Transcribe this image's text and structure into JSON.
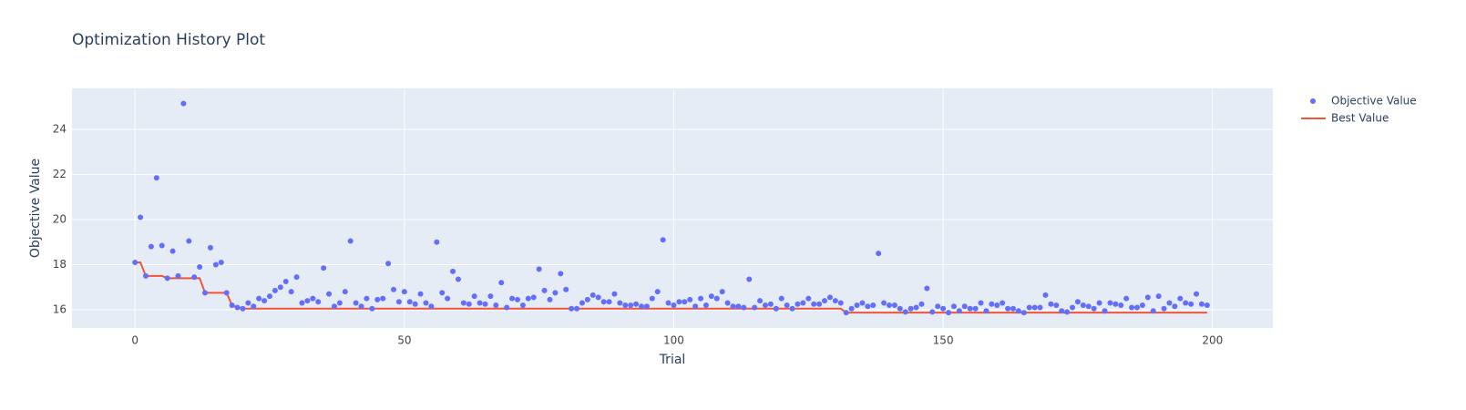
{
  "chart_data": {
    "type": "scatter",
    "title": "Optimization History Plot",
    "xlabel": "Trial",
    "ylabel": "Objective Value",
    "xlim": [
      -11.7,
      211.2
    ],
    "ylim": [
      15.19,
      25.82
    ],
    "xticks": [
      0,
      50,
      100,
      150,
      200
    ],
    "yticks": [
      16,
      18,
      20,
      22,
      24
    ],
    "grid": true,
    "legend": "outside-right",
    "x": [
      0,
      1,
      2,
      3,
      4,
      5,
      6,
      7,
      8,
      9,
      10,
      11,
      12,
      13,
      14,
      15,
      16,
      17,
      18,
      19,
      20,
      21,
      22,
      23,
      24,
      25,
      26,
      27,
      28,
      29,
      30,
      31,
      32,
      33,
      34,
      35,
      36,
      37,
      38,
      39,
      40,
      41,
      42,
      43,
      44,
      45,
      46,
      47,
      48,
      49,
      50,
      51,
      52,
      53,
      54,
      55,
      56,
      57,
      58,
      59,
      60,
      61,
      62,
      63,
      64,
      65,
      66,
      67,
      68,
      69,
      70,
      71,
      72,
      73,
      74,
      75,
      76,
      77,
      78,
      79,
      80,
      81,
      82,
      83,
      84,
      85,
      86,
      87,
      88,
      89,
      90,
      91,
      92,
      93,
      94,
      95,
      96,
      97,
      98,
      99,
      100,
      101,
      102,
      103,
      104,
      105,
      106,
      107,
      108,
      109,
      110,
      111,
      112,
      113,
      114,
      115,
      116,
      117,
      118,
      119,
      120,
      121,
      122,
      123,
      124,
      125,
      126,
      127,
      128,
      129,
      130,
      131,
      132,
      133,
      134,
      135,
      136,
      137,
      138,
      139,
      140,
      141,
      142,
      143,
      144,
      145,
      146,
      147,
      148,
      149,
      150,
      151,
      152,
      153,
      154,
      155,
      156,
      157,
      158,
      159,
      160,
      161,
      162,
      163,
      164,
      165,
      166,
      167,
      168,
      169,
      170,
      171,
      172,
      173,
      174,
      175,
      176,
      177,
      178,
      179,
      180,
      181,
      182,
      183,
      184,
      185,
      186,
      187,
      188,
      189,
      190,
      191,
      192,
      193,
      194,
      195,
      196,
      197,
      198,
      199
    ],
    "series": [
      {
        "name": "Objective Value",
        "color": "#636efa",
        "mode": "markers",
        "values": [
          18.1,
          20.1,
          17.5,
          18.8,
          21.85,
          18.85,
          17.4,
          18.6,
          17.5,
          25.15,
          19.05,
          17.45,
          17.9,
          16.75,
          18.75,
          18.0,
          18.1,
          16.75,
          16.2,
          16.1,
          16.05,
          16.3,
          16.15,
          16.5,
          16.4,
          16.6,
          16.85,
          17.0,
          17.25,
          16.8,
          17.45,
          16.3,
          16.4,
          16.5,
          16.35,
          17.85,
          16.7,
          16.15,
          16.3,
          16.8,
          19.05,
          16.3,
          16.15,
          16.5,
          16.05,
          16.45,
          16.5,
          18.05,
          16.9,
          16.35,
          16.8,
          16.35,
          16.25,
          16.7,
          16.3,
          16.15,
          19.0,
          16.75,
          16.5,
          17.7,
          17.35,
          16.3,
          16.25,
          16.6,
          16.3,
          16.25,
          16.6,
          16.2,
          17.2,
          16.1,
          16.5,
          16.45,
          16.2,
          16.5,
          16.55,
          17.8,
          16.85,
          16.45,
          16.75,
          17.6,
          16.9,
          16.05,
          16.05,
          16.3,
          16.45,
          16.65,
          16.55,
          16.35,
          16.35,
          16.7,
          16.3,
          16.2,
          16.2,
          16.25,
          16.15,
          16.15,
          16.5,
          16.8,
          19.1,
          16.3,
          16.2,
          16.35,
          16.35,
          16.45,
          16.15,
          16.5,
          16.2,
          16.6,
          16.5,
          16.8,
          16.3,
          16.15,
          16.15,
          16.1,
          17.35,
          16.1,
          16.4,
          16.2,
          16.25,
          16.05,
          16.5,
          16.2,
          16.05,
          16.25,
          16.3,
          16.5,
          16.25,
          16.25,
          16.4,
          16.55,
          16.4,
          16.3,
          15.87,
          16.05,
          16.2,
          16.3,
          16.15,
          16.2,
          18.5,
          16.3,
          16.2,
          16.2,
          16.05,
          15.9,
          16.05,
          16.1,
          16.25,
          16.95,
          15.9,
          16.15,
          16.05,
          15.87,
          16.15,
          15.95,
          16.15,
          16.05,
          16.05,
          16.3,
          15.95,
          16.25,
          16.2,
          16.3,
          16.05,
          16.05,
          15.95,
          15.87,
          16.1,
          16.1,
          16.1,
          16.65,
          16.25,
          16.2,
          15.95,
          15.9,
          16.1,
          16.35,
          16.2,
          16.15,
          16.05,
          16.3,
          15.95,
          16.3,
          16.25,
          16.2,
          16.5,
          16.1,
          16.1,
          16.2,
          16.55,
          15.95,
          16.6,
          16.05,
          16.3,
          16.15,
          16.5,
          16.3,
          16.25,
          16.7,
          16.25,
          16.2
        ]
      },
      {
        "name": "Best Value",
        "color": "#ef553b",
        "mode": "lines",
        "values": [
          18.1,
          18.1,
          17.5,
          17.5,
          17.5,
          17.5,
          17.4,
          17.4,
          17.4,
          17.4,
          17.4,
          17.4,
          17.4,
          16.75,
          16.75,
          16.75,
          16.75,
          16.75,
          16.2,
          16.1,
          16.05,
          16.05,
          16.05,
          16.05,
          16.05,
          16.05,
          16.05,
          16.05,
          16.05,
          16.05,
          16.05,
          16.05,
          16.05,
          16.05,
          16.05,
          16.05,
          16.05,
          16.05,
          16.05,
          16.05,
          16.05,
          16.05,
          16.05,
          16.05,
          16.05,
          16.05,
          16.05,
          16.05,
          16.05,
          16.05,
          16.05,
          16.05,
          16.05,
          16.05,
          16.05,
          16.05,
          16.05,
          16.05,
          16.05,
          16.05,
          16.05,
          16.05,
          16.05,
          16.05,
          16.05,
          16.05,
          16.05,
          16.05,
          16.05,
          16.05,
          16.05,
          16.05,
          16.05,
          16.05,
          16.05,
          16.05,
          16.05,
          16.05,
          16.05,
          16.05,
          16.05,
          16.05,
          16.05,
          16.05,
          16.05,
          16.05,
          16.05,
          16.05,
          16.05,
          16.05,
          16.05,
          16.05,
          16.05,
          16.05,
          16.05,
          16.05,
          16.05,
          16.05,
          16.05,
          16.05,
          16.05,
          16.05,
          16.05,
          16.05,
          16.05,
          16.05,
          16.05,
          16.05,
          16.05,
          16.05,
          16.05,
          16.05,
          16.05,
          16.05,
          16.05,
          16.05,
          16.05,
          16.05,
          16.05,
          16.05,
          16.05,
          16.05,
          16.05,
          16.05,
          16.05,
          16.05,
          16.05,
          16.05,
          16.05,
          16.05,
          16.05,
          16.05,
          15.87,
          15.87,
          15.87,
          15.87,
          15.87,
          15.87,
          15.87,
          15.87,
          15.87,
          15.87,
          15.87,
          15.87,
          15.87,
          15.87,
          15.87,
          15.87,
          15.87,
          15.87,
          15.87,
          15.87,
          15.87,
          15.87,
          15.87,
          15.87,
          15.87,
          15.87,
          15.87,
          15.87,
          15.87,
          15.87,
          15.87,
          15.87,
          15.87,
          15.87,
          15.87,
          15.87,
          15.87,
          15.87,
          15.87,
          15.87,
          15.87,
          15.87,
          15.87,
          15.87,
          15.87,
          15.87,
          15.87,
          15.87,
          15.87,
          15.87,
          15.87,
          15.87,
          15.87,
          15.87,
          15.87,
          15.87,
          15.87,
          15.87,
          15.87,
          15.87,
          15.87,
          15.87,
          15.87,
          15.87,
          15.87,
          15.87,
          15.87,
          15.87
        ]
      }
    ]
  }
}
